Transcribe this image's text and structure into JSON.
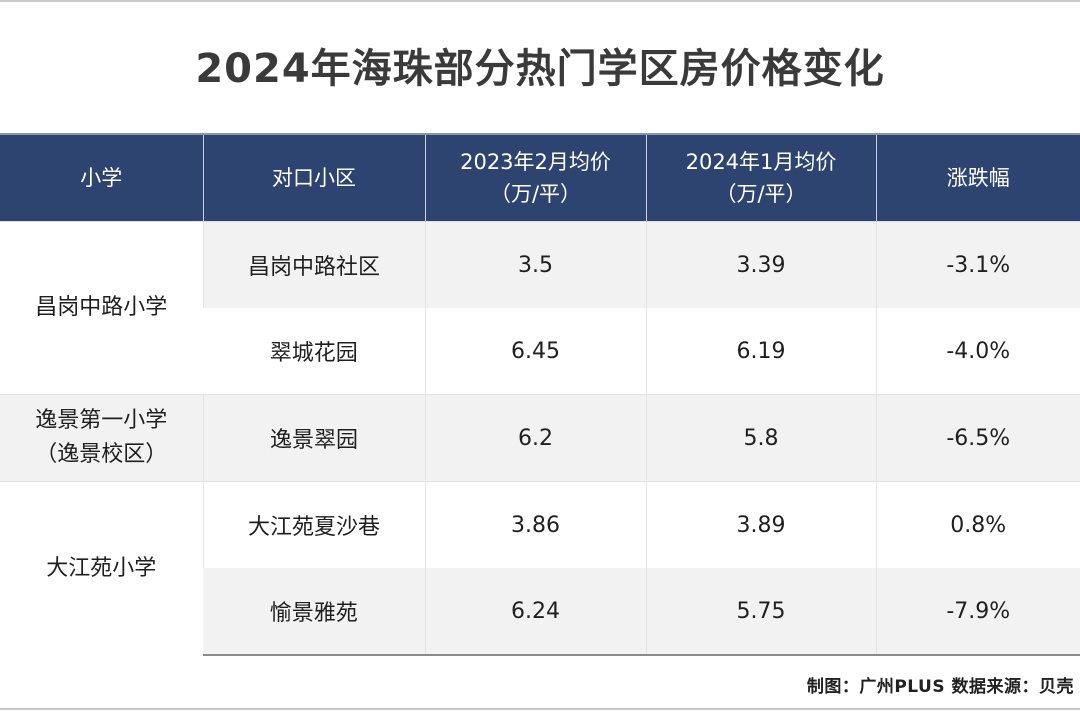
{
  "title": "2024年海珠部分热门学区房价格变化",
  "headers": {
    "school": "小学",
    "community": "对口小区",
    "price_2023_line1": "2023年2月均价",
    "price_2023_line2": "（万/平）",
    "price_2024_line1": "2024年1月均价",
    "price_2024_line2": "（万/平）",
    "change": "涨跌幅"
  },
  "schools": [
    {
      "line1": "昌岗中路小学",
      "line2": ""
    },
    {
      "line1": "逸景第一小学",
      "line2": "（逸景校区）"
    },
    {
      "line1": "大江苑小学",
      "line2": ""
    }
  ],
  "rows": [
    {
      "community": "昌岗中路社区",
      "price_2023": "3.5",
      "price_2024": "3.39",
      "change": "-3.1%"
    },
    {
      "community": "翠城花园",
      "price_2023": "6.45",
      "price_2024": "6.19",
      "change": "-4.0%"
    },
    {
      "community": "逸景翠园",
      "price_2023": "6.2",
      "price_2024": "5.8",
      "change": "-6.5%"
    },
    {
      "community": "大江苑夏沙巷",
      "price_2023": "3.86",
      "price_2024": "3.89",
      "change": "0.8%"
    },
    {
      "community": "愉景雅苑",
      "price_2023": "6.24",
      "price_2024": "5.75",
      "change": "-7.9%"
    }
  ],
  "credit": "制图：广州PLUS  数据来源：贝壳",
  "colors": {
    "header_bg": "#2e4470",
    "shaded_row": "#f2f2f2",
    "title_text": "#3a3a3a"
  },
  "chart_data": {
    "type": "table",
    "title": "2024年海珠部分热门学区房价格变化",
    "columns": [
      "小学",
      "对口小区",
      "2023年2月均价（万/平）",
      "2024年1月均价（万/平）",
      "涨跌幅"
    ],
    "rows": [
      [
        "昌岗中路小学",
        "昌岗中路社区",
        3.5,
        3.39,
        "-3.1%"
      ],
      [
        "昌岗中路小学",
        "翠城花园",
        6.45,
        6.19,
        "-4.0%"
      ],
      [
        "逸景第一小学（逸景校区）",
        "逸景翠园",
        6.2,
        5.8,
        "-6.5%"
      ],
      [
        "大江苑小学",
        "大江苑夏沙巷",
        3.86,
        3.89,
        "0.8%"
      ],
      [
        "大江苑小学",
        "愉景雅苑",
        6.24,
        5.75,
        "-7.9%"
      ]
    ]
  }
}
